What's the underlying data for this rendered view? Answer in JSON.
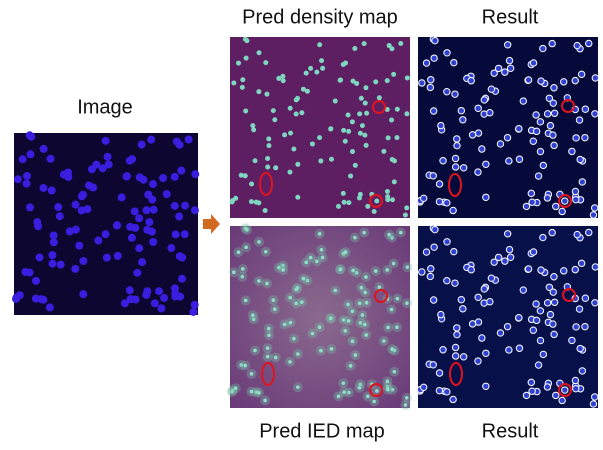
{
  "labels": {
    "image": "Image",
    "pred_density_map": "Pred density map",
    "result_top": "Result",
    "pred_ied_map": "Pred IED map",
    "result_bottom": "Result"
  }
}
